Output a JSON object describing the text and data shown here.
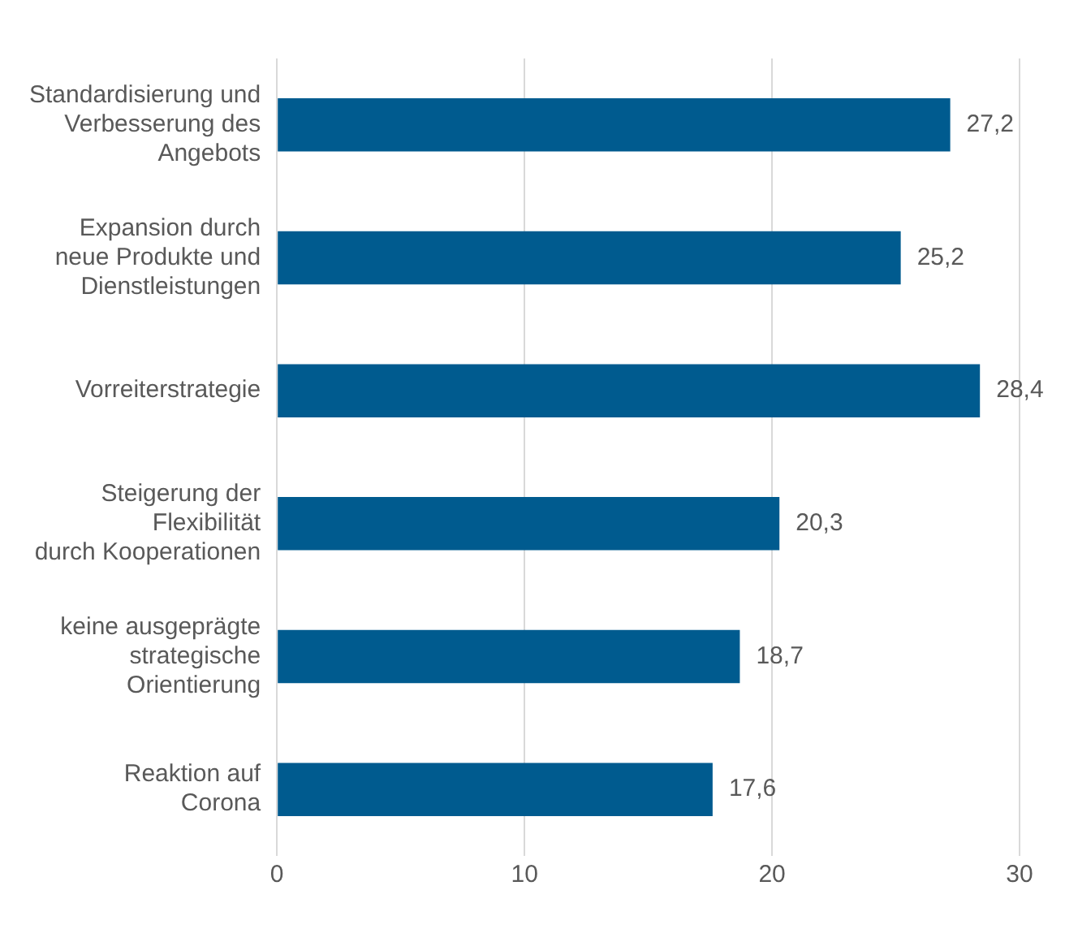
{
  "chart_data": {
    "type": "bar",
    "orientation": "horizontal",
    "categories": [
      "Standardisierung und\nVerbesserung des\nAngebots",
      "Expansion durch\nneue Produkte und\nDienstleistungen",
      "Vorreiterstrategie",
      "Steigerung der\nFlexibilität\ndurch Kooperationen",
      "keine ausgeprägte\nstrategische\nOrientierung",
      "Reaktion auf\nCorona"
    ],
    "values": [
      27.2,
      25.2,
      28.4,
      20.3,
      18.7,
      17.6
    ],
    "value_labels": [
      "27,2",
      "25,2",
      "28,4",
      "20,3",
      "18,7",
      "17,6"
    ],
    "color": "#005b8f",
    "xlim": [
      0,
      30
    ],
    "xticks": [
      0,
      10,
      20,
      30
    ],
    "grid": "x",
    "legend": false
  }
}
